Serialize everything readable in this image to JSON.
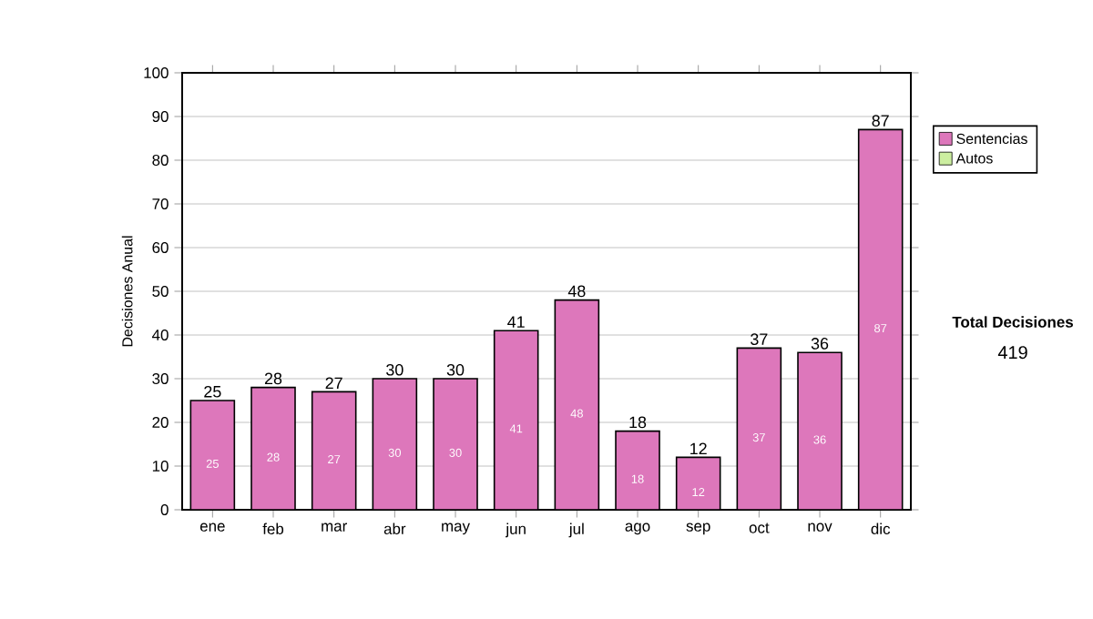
{
  "chart_data": {
    "type": "bar",
    "stacked": true,
    "ylabel": "Decisiones Anual",
    "categories": [
      "ene",
      "feb",
      "mar",
      "abr",
      "may",
      "jun",
      "jul",
      "ago",
      "sep",
      "oct",
      "nov",
      "dic"
    ],
    "series": [
      {
        "name": "Sentencias",
        "color": "#dd77bb",
        "values": [
          25,
          28,
          27,
          30,
          30,
          41,
          48,
          18,
          12,
          37,
          36,
          87
        ],
        "value_labels": [
          "25",
          "28",
          "27",
          "30",
          "30",
          "41",
          "48",
          "18",
          "12",
          "37",
          "36",
          "87"
        ]
      },
      {
        "name": "Autos",
        "color": "#cceea0",
        "values": [
          0,
          0,
          0,
          0,
          0,
          0,
          0,
          0,
          0,
          0,
          0,
          0
        ]
      }
    ],
    "totals": [
      "25",
      "28",
      "27",
      "30",
      "30",
      "41",
      "48",
      "18",
      "12",
      "37",
      "36",
      "87"
    ],
    "ylim": [
      0,
      100
    ],
    "yticks": [
      0,
      10,
      20,
      30,
      40,
      50,
      60,
      70,
      80,
      90,
      100
    ],
    "grid": "y",
    "legend": "right",
    "annotations": [
      "Total Decisiones",
      "419"
    ]
  }
}
